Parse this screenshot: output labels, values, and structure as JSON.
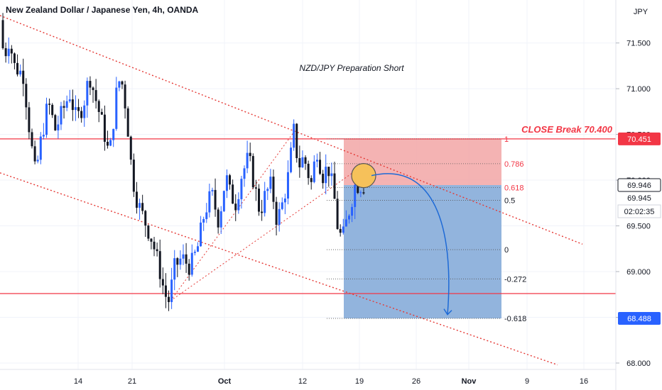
{
  "header": {
    "symbol_title": "New Zealand Dollar / Japanese Yen, 4h, OANDA"
  },
  "price_axis": {
    "currency": "JPY",
    "ticks": [
      "71.500",
      "71.000",
      "70.500",
      "70.000",
      "69.500",
      "69.000",
      "68.500",
      "68.000"
    ]
  },
  "time_axis": {
    "labels": [
      "14",
      "21",
      "Oct",
      "12",
      "19",
      "26",
      "Nov",
      "9",
      "16"
    ]
  },
  "annotations": {
    "title_text": "NZD/JPY Preparation Short",
    "close_break_text": "CLOSE Break 70.400"
  },
  "badges": {
    "resistance": "70.451",
    "last_price": "69.946",
    "bid": "69.945",
    "countdown": "02:02:35",
    "target": "68.488"
  },
  "fib_levels": [
    "1",
    "0.786",
    "0.618",
    "0.5",
    "0",
    "-0.272",
    "-0.618"
  ],
  "colors": {
    "bull": "#2962ff",
    "bear": "#131722",
    "trendline": "#e53935",
    "horizontal_line": "#f23645",
    "stop_zone": "#f2a6a6",
    "profit_zone": "#8cb0db",
    "marker_fill": "#f6c15a",
    "badge_red": "#f23645",
    "badge_blue": "#2962ff",
    "arrow": "#1e6ad6"
  },
  "chart_data": {
    "type": "candlestick",
    "symbol": "NZDJPY",
    "timeframe": "4h",
    "broker": "OANDA",
    "ylim": [
      67.93,
      71.97
    ],
    "ylabel": "JPY",
    "resistance_level": 70.451,
    "support_level": 68.76,
    "current_price": 69.946,
    "target_price": 68.488,
    "position": {
      "type": "short",
      "entry": 69.946,
      "stop": 70.451,
      "target": 68.488,
      "fib_prices": [
        70.451,
        70.18,
        69.92,
        69.78,
        69.24,
        68.92,
        68.488
      ]
    },
    "price_path": [
      [
        0,
        71.75
      ],
      [
        8,
        71.35
      ],
      [
        15,
        71.55
      ],
      [
        22,
        71.25
      ],
      [
        35,
        71.15
      ],
      [
        45,
        70.45
      ],
      [
        52,
        70.05
      ],
      [
        60,
        70.45
      ],
      [
        70,
        70.85
      ],
      [
        80,
        70.55
      ],
      [
        90,
        70.75
      ],
      [
        100,
        70.95
      ],
      [
        110,
        70.65
      ],
      [
        120,
        70.85
      ],
      [
        128,
        71.15
      ],
      [
        138,
        70.85
      ],
      [
        148,
        70.55
      ],
      [
        156,
        70.25
      ],
      [
        166,
        70.95
      ],
      [
        172,
        71.15
      ],
      [
        180,
        70.75
      ],
      [
        188,
        70.05
      ],
      [
        196,
        69.75
      ],
      [
        206,
        69.55
      ],
      [
        216,
        69.35
      ],
      [
        226,
        69.05
      ],
      [
        234,
        68.75
      ],
      [
        240,
        68.68
      ],
      [
        248,
        69.05
      ],
      [
        258,
        69.15
      ],
      [
        270,
        69.05
      ],
      [
        280,
        69.25
      ],
      [
        290,
        69.65
      ],
      [
        300,
        69.85
      ],
      [
        310,
        69.55
      ],
      [
        320,
        70.05
      ],
      [
        326,
        69.85
      ],
      [
        334,
        69.75
      ],
      [
        342,
        70.05
      ],
      [
        352,
        70.25
      ],
      [
        360,
        69.95
      ],
      [
        368,
        69.65
      ],
      [
        376,
        69.85
      ],
      [
        384,
        69.95
      ],
      [
        392,
        69.55
      ],
      [
        400,
        69.75
      ],
      [
        408,
        70.05
      ],
      [
        416,
        70.55
      ],
      [
        422,
        70.15
      ],
      [
        430,
        70.25
      ],
      [
        440,
        69.95
      ],
      [
        448,
        70.35
      ],
      [
        456,
        70.05
      ],
      [
        464,
        70.15
      ],
      [
        472,
        69.85
      ],
      [
        478,
        69.45
      ],
      [
        484,
        69.35
      ],
      [
        490,
        69.55
      ],
      [
        496,
        69.75
      ],
      [
        502,
        69.95
      ],
      [
        508,
        69.95
      ],
      [
        512,
        69.94
      ]
    ],
    "candle_count": 125,
    "channel": {
      "upper": [
        [
          0,
          71.8
        ],
        [
          820,
          69.3
        ]
      ],
      "lower": [
        [
          0,
          70.08
        ],
        [
          785,
          67.98
        ]
      ]
    }
  }
}
